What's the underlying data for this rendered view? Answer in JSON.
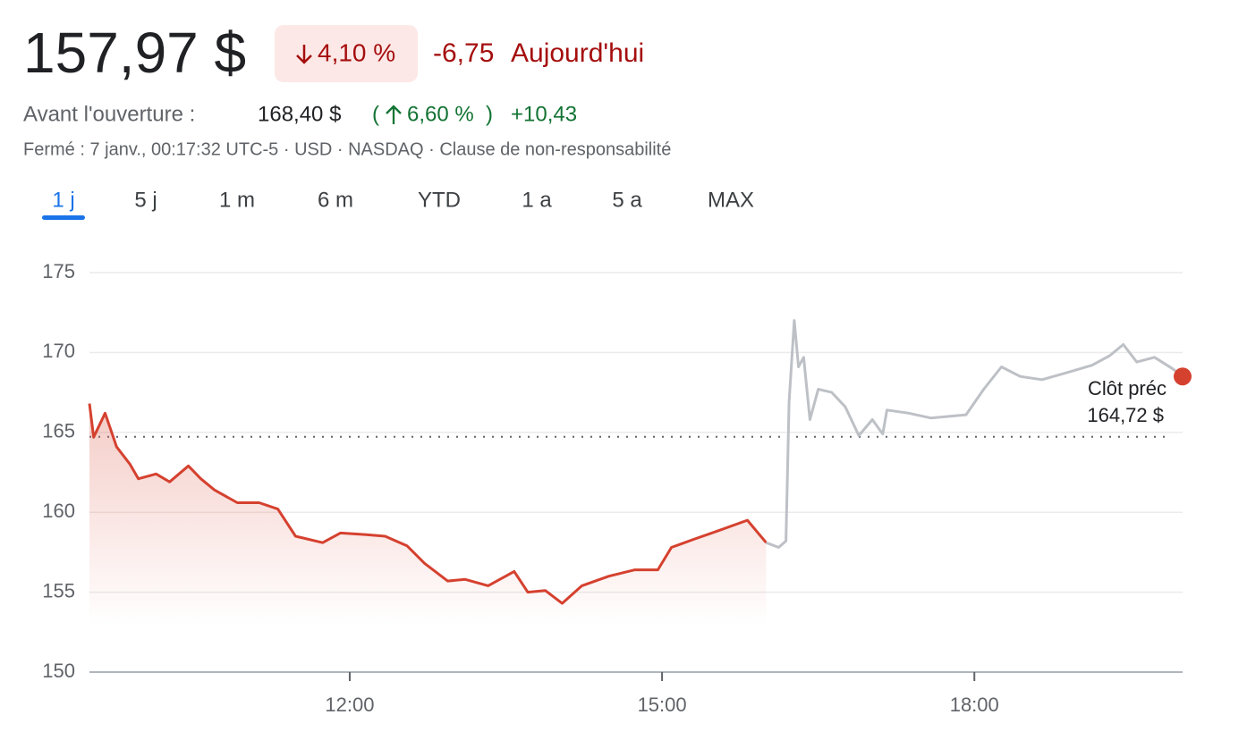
{
  "header": {
    "price": "157,97 $",
    "change_pct": "4,10 %",
    "change_abs": "-6,75",
    "change_period": "Aujourd'hui",
    "premarket_label": "Avant l'ouverture :",
    "premarket_price": "168,40 $",
    "premarket_paren_open": "(",
    "premarket_change_pct": "6,60 %",
    "premarket_paren_close": ")",
    "premarket_change_abs": "+10,43",
    "status_line": "Fermé : 7 janv., 00:17:32 UTC-5 · USD · NASDAQ · Clause de non-responsabilité"
  },
  "tabs": [
    "1 j",
    "5 j",
    "1 m",
    "6 m",
    "YTD",
    "1 a",
    "5 a",
    "MAX"
  ],
  "selected_tab": 0,
  "chart_data": {
    "type": "line",
    "xlim": [
      9.5,
      20
    ],
    "xticks": [
      {
        "value": 12,
        "label": "12:00"
      },
      {
        "value": 15,
        "label": "15:00"
      },
      {
        "value": 18,
        "label": "18:00"
      }
    ],
    "ylim": [
      150,
      175
    ],
    "yticks": [
      150,
      155,
      160,
      165,
      170,
      175
    ],
    "grid": true,
    "previous_close": {
      "value": 164.72,
      "label": "164,72 $"
    },
    "previous_close_title": "Clôt préc",
    "series": [
      {
        "color": "#d5412f",
        "x": [
          9.5,
          9.54,
          9.65,
          9.76,
          9.89,
          9.97,
          10.14,
          10.27,
          10.45,
          10.57,
          10.7,
          10.92,
          11.13,
          11.31,
          11.48,
          11.74,
          11.91,
          12.16,
          12.34,
          12.55,
          12.72,
          12.94,
          13.11,
          13.33,
          13.58,
          13.71,
          13.88,
          14.04,
          14.23,
          14.49,
          14.74,
          14.96,
          15.09,
          15.3,
          15.52,
          15.82,
          16.0
        ],
        "values": [
          166.8,
          164.7,
          166.2,
          164.1,
          163.0,
          162.1,
          162.4,
          161.9,
          162.9,
          162.1,
          161.4,
          160.6,
          160.6,
          160.2,
          158.5,
          158.1,
          158.7,
          158.6,
          158.5,
          157.9,
          156.8,
          155.7,
          155.8,
          155.4,
          156.3,
          155.0,
          155.1,
          154.3,
          155.4,
          156.0,
          156.4,
          156.4,
          157.8,
          158.3,
          158.8,
          159.5,
          158.1
        ]
      },
      {
        "color": "#bdc1c6",
        "x": [
          16.0,
          16.12,
          16.19,
          16.22,
          16.27,
          16.31,
          16.36,
          16.42,
          16.5,
          16.63,
          16.76,
          16.89,
          17.02,
          17.12,
          17.16,
          17.37,
          17.58,
          17.92,
          18.09,
          18.26,
          18.44,
          18.65,
          18.87,
          19.13,
          19.3,
          19.43,
          19.56,
          19.73,
          19.9,
          20.0
        ],
        "values": [
          158.1,
          157.8,
          158.2,
          166.9,
          172.0,
          169.1,
          169.7,
          165.8,
          167.7,
          167.5,
          166.6,
          164.8,
          165.8,
          164.9,
          166.4,
          166.2,
          165.9,
          166.1,
          167.7,
          169.1,
          168.5,
          168.3,
          168.7,
          169.2,
          169.8,
          170.5,
          169.4,
          169.7,
          169.0,
          168.5
        ]
      }
    ]
  }
}
